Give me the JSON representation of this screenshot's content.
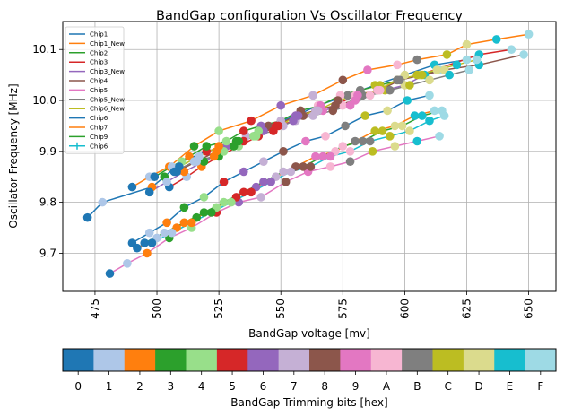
{
  "chart_data": {
    "type": "scatter",
    "title": "BandGap configuration Vs Oscillator Frequency",
    "xlabel": "BandGap voltage [mv]",
    "ylabel": "Oscillator Frequency [MHz]",
    "xlim": [
      462,
      661
    ],
    "ylim": [
      9.625,
      10.155
    ],
    "x_ticks": [
      475,
      500,
      525,
      550,
      575,
      600,
      625,
      650
    ],
    "y_ticks": [
      9.7,
      9.8,
      9.9,
      10.0,
      10.1
    ],
    "y_tick_labels": [
      "9.7",
      "9.8",
      "9.9",
      "10.0",
      "10.1"
    ],
    "grid": true,
    "legend_position": "upper-left",
    "colorbar": {
      "label": "BandGap Trimming bits [hex]",
      "ticks": [
        "0",
        "1",
        "2",
        "3",
        "4",
        "5",
        "6",
        "7",
        "8",
        "9",
        "A",
        "B",
        "C",
        "D",
        "E",
        "F"
      ],
      "colors": [
        "#1f77b4",
        "#aec7e8",
        "#ff7f0e",
        "#2ca02c",
        "#98df8a",
        "#d62728",
        "#9467bd",
        "#c5b0d5",
        "#8c564b",
        "#e377c2",
        "#f7b6d2",
        "#7f7f7f",
        "#bcbd22",
        "#dbdb8d",
        "#17becf",
        "#9edae5"
      ]
    },
    "series": [
      {
        "name": "Chip1",
        "color": "#1f77b4",
        "points": [
          [
            472,
            9.77
          ],
          [
            478,
            9.8
          ],
          [
            498,
            9.83
          ],
          [
            503,
            9.85
          ],
          [
            510,
            9.88
          ],
          [
            520,
            9.9
          ],
          [
            528,
            9.91
          ],
          [
            536,
            9.93
          ],
          [
            545,
            9.95
          ],
          [
            556,
            9.97
          ],
          [
            565,
            9.99
          ],
          [
            577,
            10.01
          ],
          [
            588,
            10.03
          ],
          [
            600,
            10.05
          ],
          [
            612,
            10.07
          ],
          [
            625,
            10.08
          ]
        ]
      },
      {
        "name": "Chip1_New",
        "color": "#ff7f0e",
        "points": [
          [
            490,
            9.83
          ],
          [
            497,
            9.85
          ],
          [
            505,
            9.87
          ],
          [
            515,
            9.91
          ],
          [
            525,
            9.94
          ],
          [
            538,
            9.96
          ],
          [
            550,
            9.99
          ],
          [
            563,
            10.01
          ],
          [
            575,
            10.04
          ],
          [
            585,
            10.06
          ],
          [
            597,
            10.07
          ],
          [
            605,
            10.08
          ],
          [
            617,
            10.09
          ],
          [
            625,
            10.11
          ],
          [
            637,
            10.12
          ],
          [
            650,
            10.13
          ]
        ]
      },
      {
        "name": "Chip2",
        "color": "#2ca02c",
        "points": [
          [
            499,
            9.85
          ],
          [
            506,
            9.87
          ],
          [
            513,
            9.89
          ],
          [
            520,
            9.91
          ],
          [
            528,
            9.92
          ],
          [
            535,
            9.94
          ],
          [
            542,
            9.95
          ],
          [
            550,
            9.96
          ],
          [
            558,
            9.98
          ],
          [
            566,
            9.99
          ],
          [
            574,
            10.01
          ],
          [
            582,
            10.02
          ],
          [
            590,
            10.03
          ],
          [
            598,
            10.04
          ],
          [
            606,
            10.05
          ],
          [
            614,
            10.06
          ]
        ]
      },
      {
        "name": "Chip3",
        "color": "#d62728",
        "points": [
          [
            505,
            9.83
          ],
          [
            512,
            9.85
          ],
          [
            518,
            9.87
          ],
          [
            525,
            9.89
          ],
          [
            533,
            9.91
          ],
          [
            541,
            9.93
          ],
          [
            548,
            9.95
          ],
          [
            556,
            9.96
          ],
          [
            564,
            9.98
          ],
          [
            572,
            9.99
          ],
          [
            580,
            10.01
          ],
          [
            589,
            10.02
          ],
          [
            597,
            10.04
          ],
          [
            606,
            10.05
          ],
          [
            630,
            10.09
          ],
          [
            643,
            10.1
          ]
        ]
      },
      {
        "name": "Chip3_New",
        "color": "#9467bd",
        "points": [
          [
            497,
            9.82
          ],
          [
            504,
            9.84
          ],
          [
            511,
            9.86
          ],
          [
            519,
            9.88
          ],
          [
            527,
            9.9
          ],
          [
            535,
            9.92
          ],
          [
            543,
            9.94
          ],
          [
            551,
            9.95
          ],
          [
            559,
            9.97
          ],
          [
            567,
            9.98
          ],
          [
            575,
            9.99
          ],
          [
            583,
            10.01
          ],
          [
            592,
            10.02
          ],
          [
            600,
            10.03
          ],
          [
            608,
            10.05
          ],
          [
            616,
            10.06
          ]
        ]
      },
      {
        "name": "Chip4",
        "color": "#8c564b",
        "points": [
          [
            508,
            9.86
          ],
          [
            516,
            9.88
          ],
          [
            524,
            9.9
          ],
          [
            532,
            9.92
          ],
          [
            540,
            9.93
          ],
          [
            548,
            9.95
          ],
          [
            556,
            9.97
          ],
          [
            564,
            9.98
          ],
          [
            572,
            9.99
          ],
          [
            580,
            10.0
          ],
          [
            590,
            10.02
          ],
          [
            598,
            10.04
          ],
          [
            607,
            10.05
          ],
          [
            616,
            10.06
          ],
          [
            630,
            10.07
          ],
          [
            648,
            10.09
          ]
        ]
      },
      {
        "name": "Chip5",
        "color": "#e377c2",
        "points": [
          [
            481,
            9.66
          ],
          [
            488,
            9.68
          ],
          [
            496,
            9.7
          ],
          [
            505,
            9.73
          ],
          [
            514,
            9.75
          ],
          [
            524,
            9.78
          ],
          [
            533,
            9.8
          ],
          [
            542,
            9.81
          ],
          [
            552,
            9.84
          ],
          [
            561,
            9.86
          ],
          [
            570,
            9.87
          ],
          [
            578,
            9.88
          ],
          [
            587,
            9.9
          ],
          [
            596,
            9.91
          ],
          [
            605,
            9.92
          ],
          [
            614,
            9.93
          ]
        ]
      },
      {
        "name": "Chip5_New",
        "color": "#7f7f7f",
        "points": [
          [
            507,
            9.86
          ],
          [
            515,
            9.88
          ],
          [
            523,
            9.89
          ],
          [
            531,
            9.91
          ],
          [
            539,
            9.93
          ],
          [
            547,
            9.94
          ],
          [
            555,
            9.96
          ],
          [
            563,
            9.97
          ],
          [
            571,
            9.98
          ],
          [
            578,
            9.99
          ],
          [
            586,
            10.01
          ],
          [
            594,
            10.02
          ],
          [
            602,
            10.03
          ],
          [
            610,
            10.04
          ],
          [
            618,
            10.05
          ],
          [
            626,
            10.06
          ]
        ]
      },
      {
        "name": "Chip6_New",
        "color": "#bcbd22",
        "points": [
          [
            509,
            9.87
          ],
          [
            517,
            9.89
          ],
          [
            525,
            9.91
          ],
          [
            533,
            9.92
          ],
          [
            541,
            9.94
          ],
          [
            549,
            9.95
          ],
          [
            557,
            9.97
          ],
          [
            565,
            9.98
          ],
          [
            573,
            10.0
          ],
          [
            581,
            10.01
          ],
          [
            589,
            10.02
          ],
          [
            597,
            10.04
          ],
          [
            605,
            10.05
          ],
          [
            613,
            10.06
          ],
          [
            621,
            10.07
          ],
          [
            629,
            10.08
          ]
        ]
      },
      {
        "name": "Chip6",
        "color": "#1f77b4",
        "points": [
          [
            490,
            9.72
          ],
          [
            497,
            9.74
          ],
          [
            504,
            9.76
          ],
          [
            511,
            9.79
          ],
          [
            519,
            9.81
          ],
          [
            527,
            9.84
          ],
          [
            535,
            9.86
          ],
          [
            543,
            9.88
          ],
          [
            551,
            9.9
          ],
          [
            560,
            9.92
          ],
          [
            568,
            9.93
          ],
          [
            576,
            9.95
          ],
          [
            584,
            9.97
          ],
          [
            593,
            9.98
          ],
          [
            601,
            10.0
          ],
          [
            610,
            10.01
          ]
        ]
      },
      {
        "name": "Chip7",
        "color": "#ff7f0e",
        "points": [
          [
            492,
            9.71
          ],
          [
            500,
            9.73
          ],
          [
            508,
            9.75
          ],
          [
            516,
            9.77
          ],
          [
            524,
            9.79
          ],
          [
            532,
            9.81
          ],
          [
            540,
            9.83
          ],
          [
            548,
            9.85
          ],
          [
            556,
            9.87
          ],
          [
            564,
            9.89
          ],
          [
            572,
            9.9
          ],
          [
            580,
            9.92
          ],
          [
            588,
            9.94
          ],
          [
            596,
            9.95
          ],
          [
            604,
            9.97
          ],
          [
            612,
            9.98
          ]
        ]
      },
      {
        "name": "Chip9",
        "color": "#2ca02c",
        "points": [
          [
            495,
            9.72
          ],
          [
            503,
            9.74
          ],
          [
            511,
            9.76
          ],
          [
            519,
            9.78
          ],
          [
            527,
            9.8
          ],
          [
            535,
            9.82
          ],
          [
            543,
            9.84
          ],
          [
            551,
            9.86
          ],
          [
            559,
            9.87
          ],
          [
            567,
            9.89
          ],
          [
            575,
            9.91
          ],
          [
            583,
            9.92
          ],
          [
            591,
            9.94
          ],
          [
            599,
            9.95
          ],
          [
            607,
            9.97
          ],
          [
            615,
            9.98
          ]
        ]
      },
      {
        "name": "Chip6",
        "color": "#17becf",
        "points": [
          [
            498,
            9.72
          ],
          [
            506,
            9.74
          ],
          [
            514,
            9.76
          ],
          [
            522,
            9.78
          ],
          [
            530,
            9.8
          ],
          [
            538,
            9.82
          ],
          [
            546,
            9.84
          ],
          [
            554,
            9.86
          ],
          [
            562,
            9.87
          ],
          [
            570,
            9.89
          ],
          [
            578,
            9.9
          ],
          [
            586,
            9.92
          ],
          [
            594,
            9.93
          ],
          [
            602,
            9.94
          ],
          [
            610,
            9.96
          ],
          [
            616,
            9.97
          ]
        ]
      }
    ]
  }
}
